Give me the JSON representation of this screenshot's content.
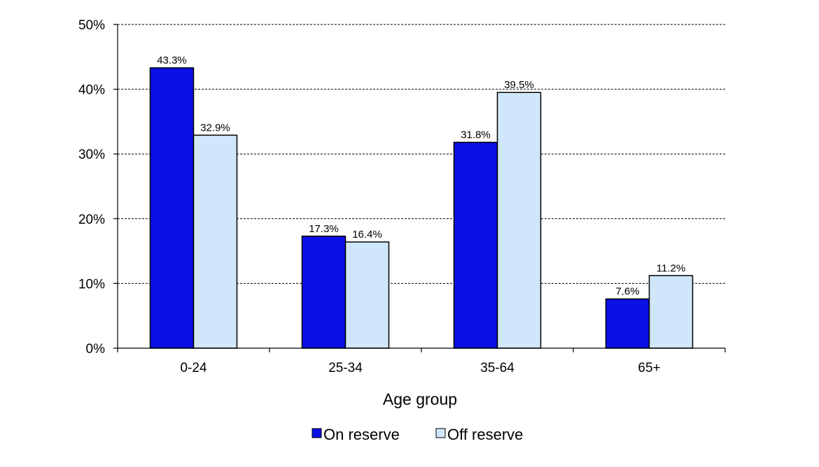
{
  "chart_data": {
    "type": "bar",
    "title": "",
    "xlabel": "Age group",
    "ylabel": "",
    "categories": [
      "0-24",
      "25-34",
      "35-64",
      "65+"
    ],
    "series": [
      {
        "name": "On reserve",
        "values": [
          43.3,
          17.3,
          31.8,
          7.6
        ],
        "labels": [
          "43.3%",
          "17.3%",
          "31.8%",
          "7.6%"
        ],
        "color": "#0a10e6"
      },
      {
        "name": "Off reserve",
        "values": [
          32.9,
          16.4,
          39.5,
          11.2
        ],
        "labels": [
          "32.9%",
          "16.4%",
          "39.5%",
          "11.2%"
        ],
        "color": "#cfe6fb"
      }
    ],
    "ylim": [
      0,
      50
    ],
    "yticks": [
      0,
      10,
      20,
      30,
      40,
      50
    ],
    "ytick_labels": [
      "0%",
      "10%",
      "20%",
      "30%",
      "40%",
      "50%"
    ],
    "grid": true,
    "legend_position": "bottom"
  }
}
